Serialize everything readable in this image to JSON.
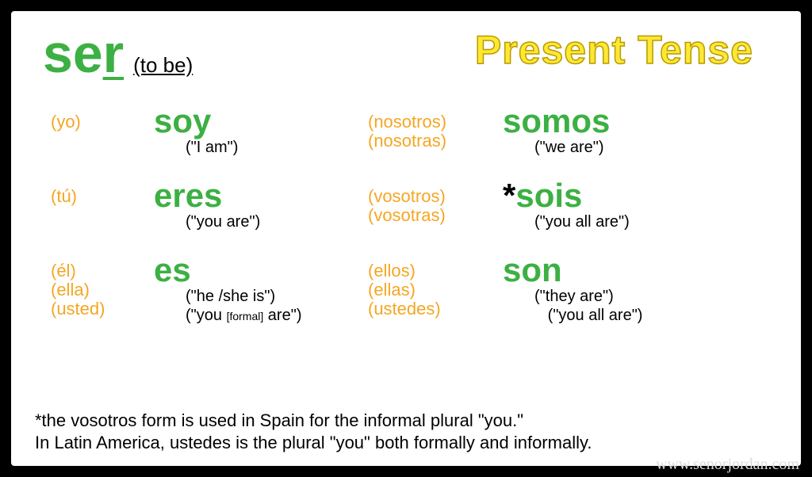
{
  "colors": {
    "green": "#3CB043",
    "orange": "#F5A623",
    "yellow": "#FFE833",
    "black": "#000000",
    "white": "#ffffff"
  },
  "header": {
    "verb_prefix": "se",
    "verb_underlined": "r",
    "translation": "(to be)",
    "tense": "Present Tense"
  },
  "rows": [
    {
      "left_pron": [
        "(yo)"
      ],
      "left_conj": "soy",
      "left_meaning": [
        "(\"I am\")"
      ],
      "right_pron": [
        "(nosotros)",
        "(nosotras)"
      ],
      "right_conj": "somos",
      "right_star": false,
      "right_meaning": [
        "(\"we are\")"
      ]
    },
    {
      "left_pron": [
        "(tú)"
      ],
      "left_conj": "eres",
      "left_meaning": [
        "(\"you are\")"
      ],
      "right_pron": [
        "(vosotros)",
        "(vosotras)"
      ],
      "right_conj": "sois",
      "right_star": true,
      "right_meaning": [
        "(\"you all are\")"
      ]
    },
    {
      "left_pron": [
        "(él)",
        "(ella)",
        "(usted)"
      ],
      "left_conj": "es",
      "left_meaning_html": "(\"he /she is\")<br>(\"you <span class='small'>[formal]</span> are\")",
      "right_pron": [
        "(ellos)",
        "(ellas)",
        "(ustedes)"
      ],
      "right_conj": "son",
      "right_star": false,
      "right_meaning_html": "(\"they are\")<br>&nbsp;&nbsp;&nbsp;(\"you all are\")"
    }
  ],
  "footnote": {
    "line1": "*the vosotros form is used in Spain for the informal plural \"you.\"",
    "line2": "In Latin America, ustedes is the plural \"you\" both formally and informally."
  },
  "watermark": "www.senorjordan.com"
}
